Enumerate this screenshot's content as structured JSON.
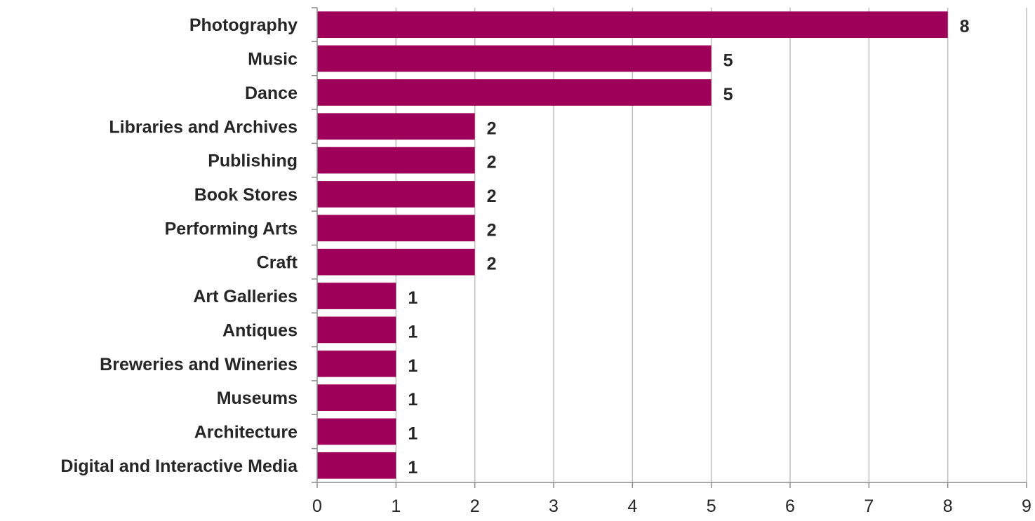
{
  "chart_data": {
    "type": "bar",
    "orientation": "horizontal",
    "categories": [
      "Photography",
      "Music ",
      "Dance",
      "Libraries and Archives",
      "Publishing",
      "Book Stores",
      "Performing Arts",
      "Craft ",
      "Art Galleries",
      "Antiques",
      "Breweries and Wineries",
      "Museums",
      "Architecture ",
      "Digital and Interactive Media"
    ],
    "values": [
      8,
      5,
      5,
      2,
      2,
      2,
      2,
      2,
      1,
      1,
      1,
      1,
      1,
      1
    ],
    "xlim": [
      0,
      9
    ],
    "xticks": [
      "0",
      "1",
      "2",
      "3",
      "4",
      "5",
      "6",
      "7",
      "8",
      "9"
    ],
    "title": "",
    "xlabel": "",
    "ylabel": "",
    "grid": "vertical",
    "legend": "none",
    "bar_color": "#9e0059"
  }
}
